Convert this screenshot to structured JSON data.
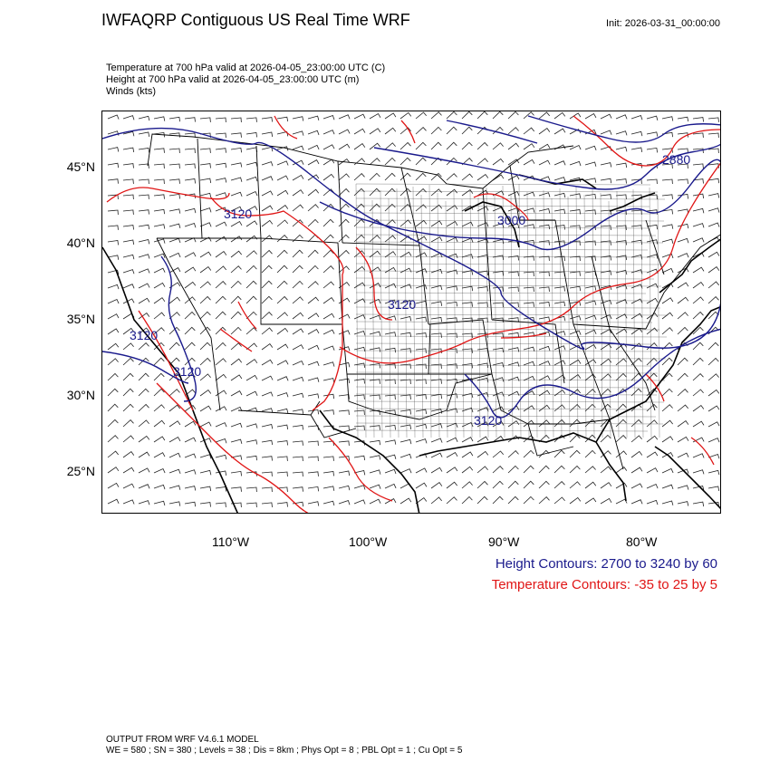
{
  "title": "IWFAQRP Contiguous US Real Time WRF",
  "init": "Init: 2026-03-31_00:00:00",
  "subtitle": {
    "temperature": "Temperature at 700 hPa valid at 2026-04-05_23:00:00 UTC   (C)",
    "height": "Height at 700 hPa valid at 2026-04-05_23:00:00 UTC   (m)",
    "winds": "Winds   (kts)"
  },
  "lat_labels": [
    "45°N",
    "40°N",
    "35°N",
    "30°N",
    "25°N"
  ],
  "lon_labels": [
    "110°W",
    "100°W",
    "90°W",
    "80°W"
  ],
  "contour_labels": [
    "2880",
    "3000",
    "3120",
    "3120",
    "3120",
    "3120",
    "3120"
  ],
  "legend": {
    "height": "Height Contours: 2700 to 3240 by 60",
    "temperature": "Temperature Contours: -35 to 25 by 5"
  },
  "footer": {
    "line1": "OUTPUT FROM WRF V4.6.1 MODEL",
    "line2": "WE = 580 ; SN = 380 ; Levels = 38 ; Dis = 8km ; Phys Opt = 8 ; PBL Opt = 1 ; Cu Opt = 5"
  },
  "colors": {
    "height_contour": "#1a1a8c",
    "temperature_contour": "#e01515",
    "boundaries": "#000000",
    "wind_barbs": "#000000"
  }
}
